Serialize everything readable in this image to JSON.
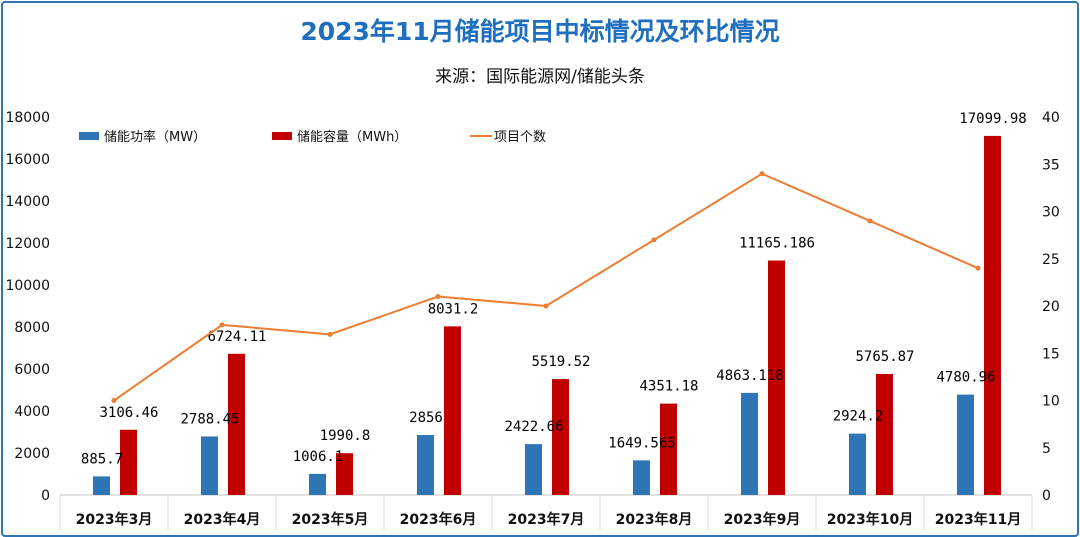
{
  "title": "2023年11月储能项目中标情况及环比情况",
  "subtitle": "来源：国际能源网/储能头条",
  "chart_data": {
    "type": "bar",
    "title": "2023年11月储能项目中标情况及环比情况",
    "categories": [
      "2023年3月",
      "2023年4月",
      "2023年5月",
      "2023年6月",
      "2023年7月",
      "2023年8月",
      "2023年9月",
      "2023年10月",
      "2023年11月"
    ],
    "series": [
      {
        "name": "储能功率（MW）",
        "type": "bar",
        "axis": "left",
        "color": "#2e75b6",
        "values": [
          885.7,
          2788.45,
          1006.1,
          2856,
          2422.66,
          1649.565,
          4863.118,
          2924.2,
          4780.96
        ],
        "labels": [
          "885.7",
          "2788.45",
          "1006.1",
          "2856",
          "2422.66",
          "1649.565",
          "4863.118",
          "2924.2",
          "4780.96"
        ]
      },
      {
        "name": "储能容量（MWh）",
        "type": "bar",
        "axis": "left",
        "color": "#c00000",
        "values": [
          3106.46,
          6724.11,
          1990.8,
          8031.2,
          5519.52,
          4351.18,
          11165.186,
          5765.87,
          17099.98
        ],
        "labels": [
          "3106.46",
          "6724.11",
          "1990.8",
          "8031.2",
          "5519.52",
          "4351.18",
          "11165.186",
          "5765.87",
          "17099.98"
        ]
      },
      {
        "name": "项目个数",
        "type": "line",
        "axis": "right",
        "color": "#ed7d31",
        "values": [
          10,
          18,
          17,
          21,
          20,
          27,
          34,
          29,
          24
        ]
      }
    ],
    "y_left": {
      "range": [
        0,
        18000
      ],
      "ticks": [
        "0",
        "2000",
        "4000",
        "6000",
        "8000",
        "10000",
        "12000",
        "14000",
        "16000",
        "18000"
      ]
    },
    "y_right": {
      "range": [
        0,
        40
      ],
      "ticks": [
        "0",
        "5",
        "10",
        "15",
        "20",
        "25",
        "30",
        "35",
        "40"
      ]
    },
    "legend": "top",
    "grid": false
  }
}
